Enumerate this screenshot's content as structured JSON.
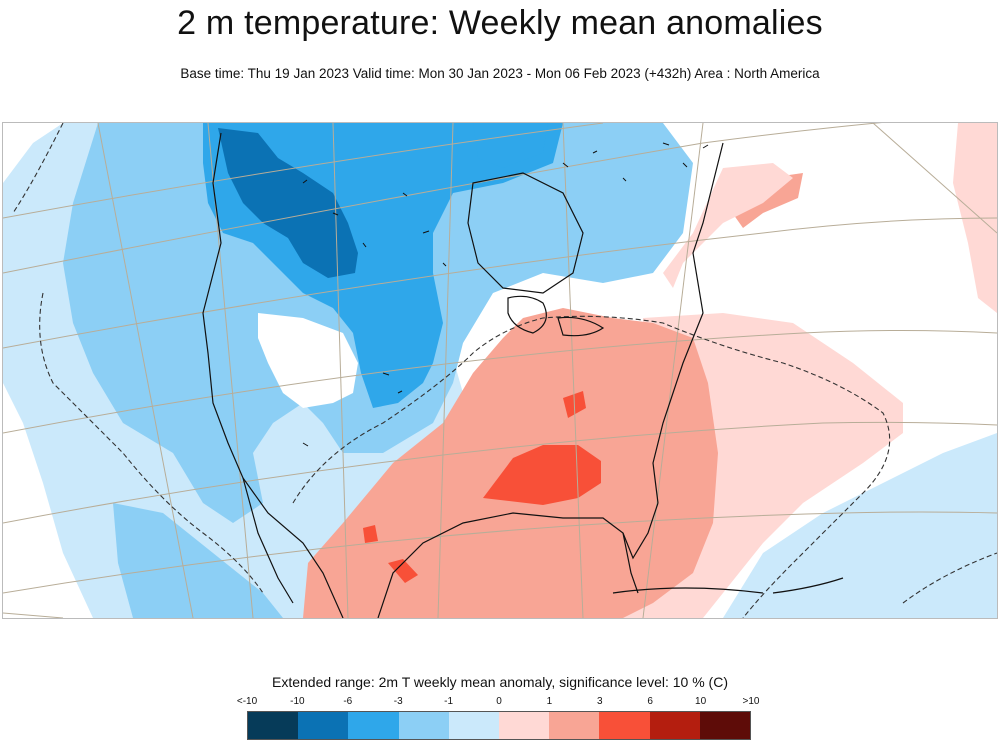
{
  "header": {
    "title": "2 m temperature: Weekly mean anomalies",
    "subtitle": "Base time: Thu 19 Jan 2023 Valid time: Mon 30 Jan 2023 - Mon 06 Feb 2023 (+432h) Area : North America"
  },
  "legend": {
    "title": "Extended range: 2m T weekly mean anomaly, significance level: 10 % (C)",
    "labels": [
      "<-10",
      "-10",
      "-6",
      "-3",
      "-1",
      "0",
      "1",
      "3",
      "6",
      "10",
      ">10"
    ],
    "colors": [
      "#063b59",
      "#0b72b4",
      "#2fa7ea",
      "#8ccff5",
      "#cbe9fb",
      "#ffd9d5",
      "#f8a595",
      "#f85038",
      "#b41e0f",
      "#5e0c08"
    ]
  },
  "map": {
    "region": "North America",
    "colors": {
      "land_outline": "#111111",
      "graticule": "#b8ad98",
      "significance_contour": "#333333"
    }
  }
}
